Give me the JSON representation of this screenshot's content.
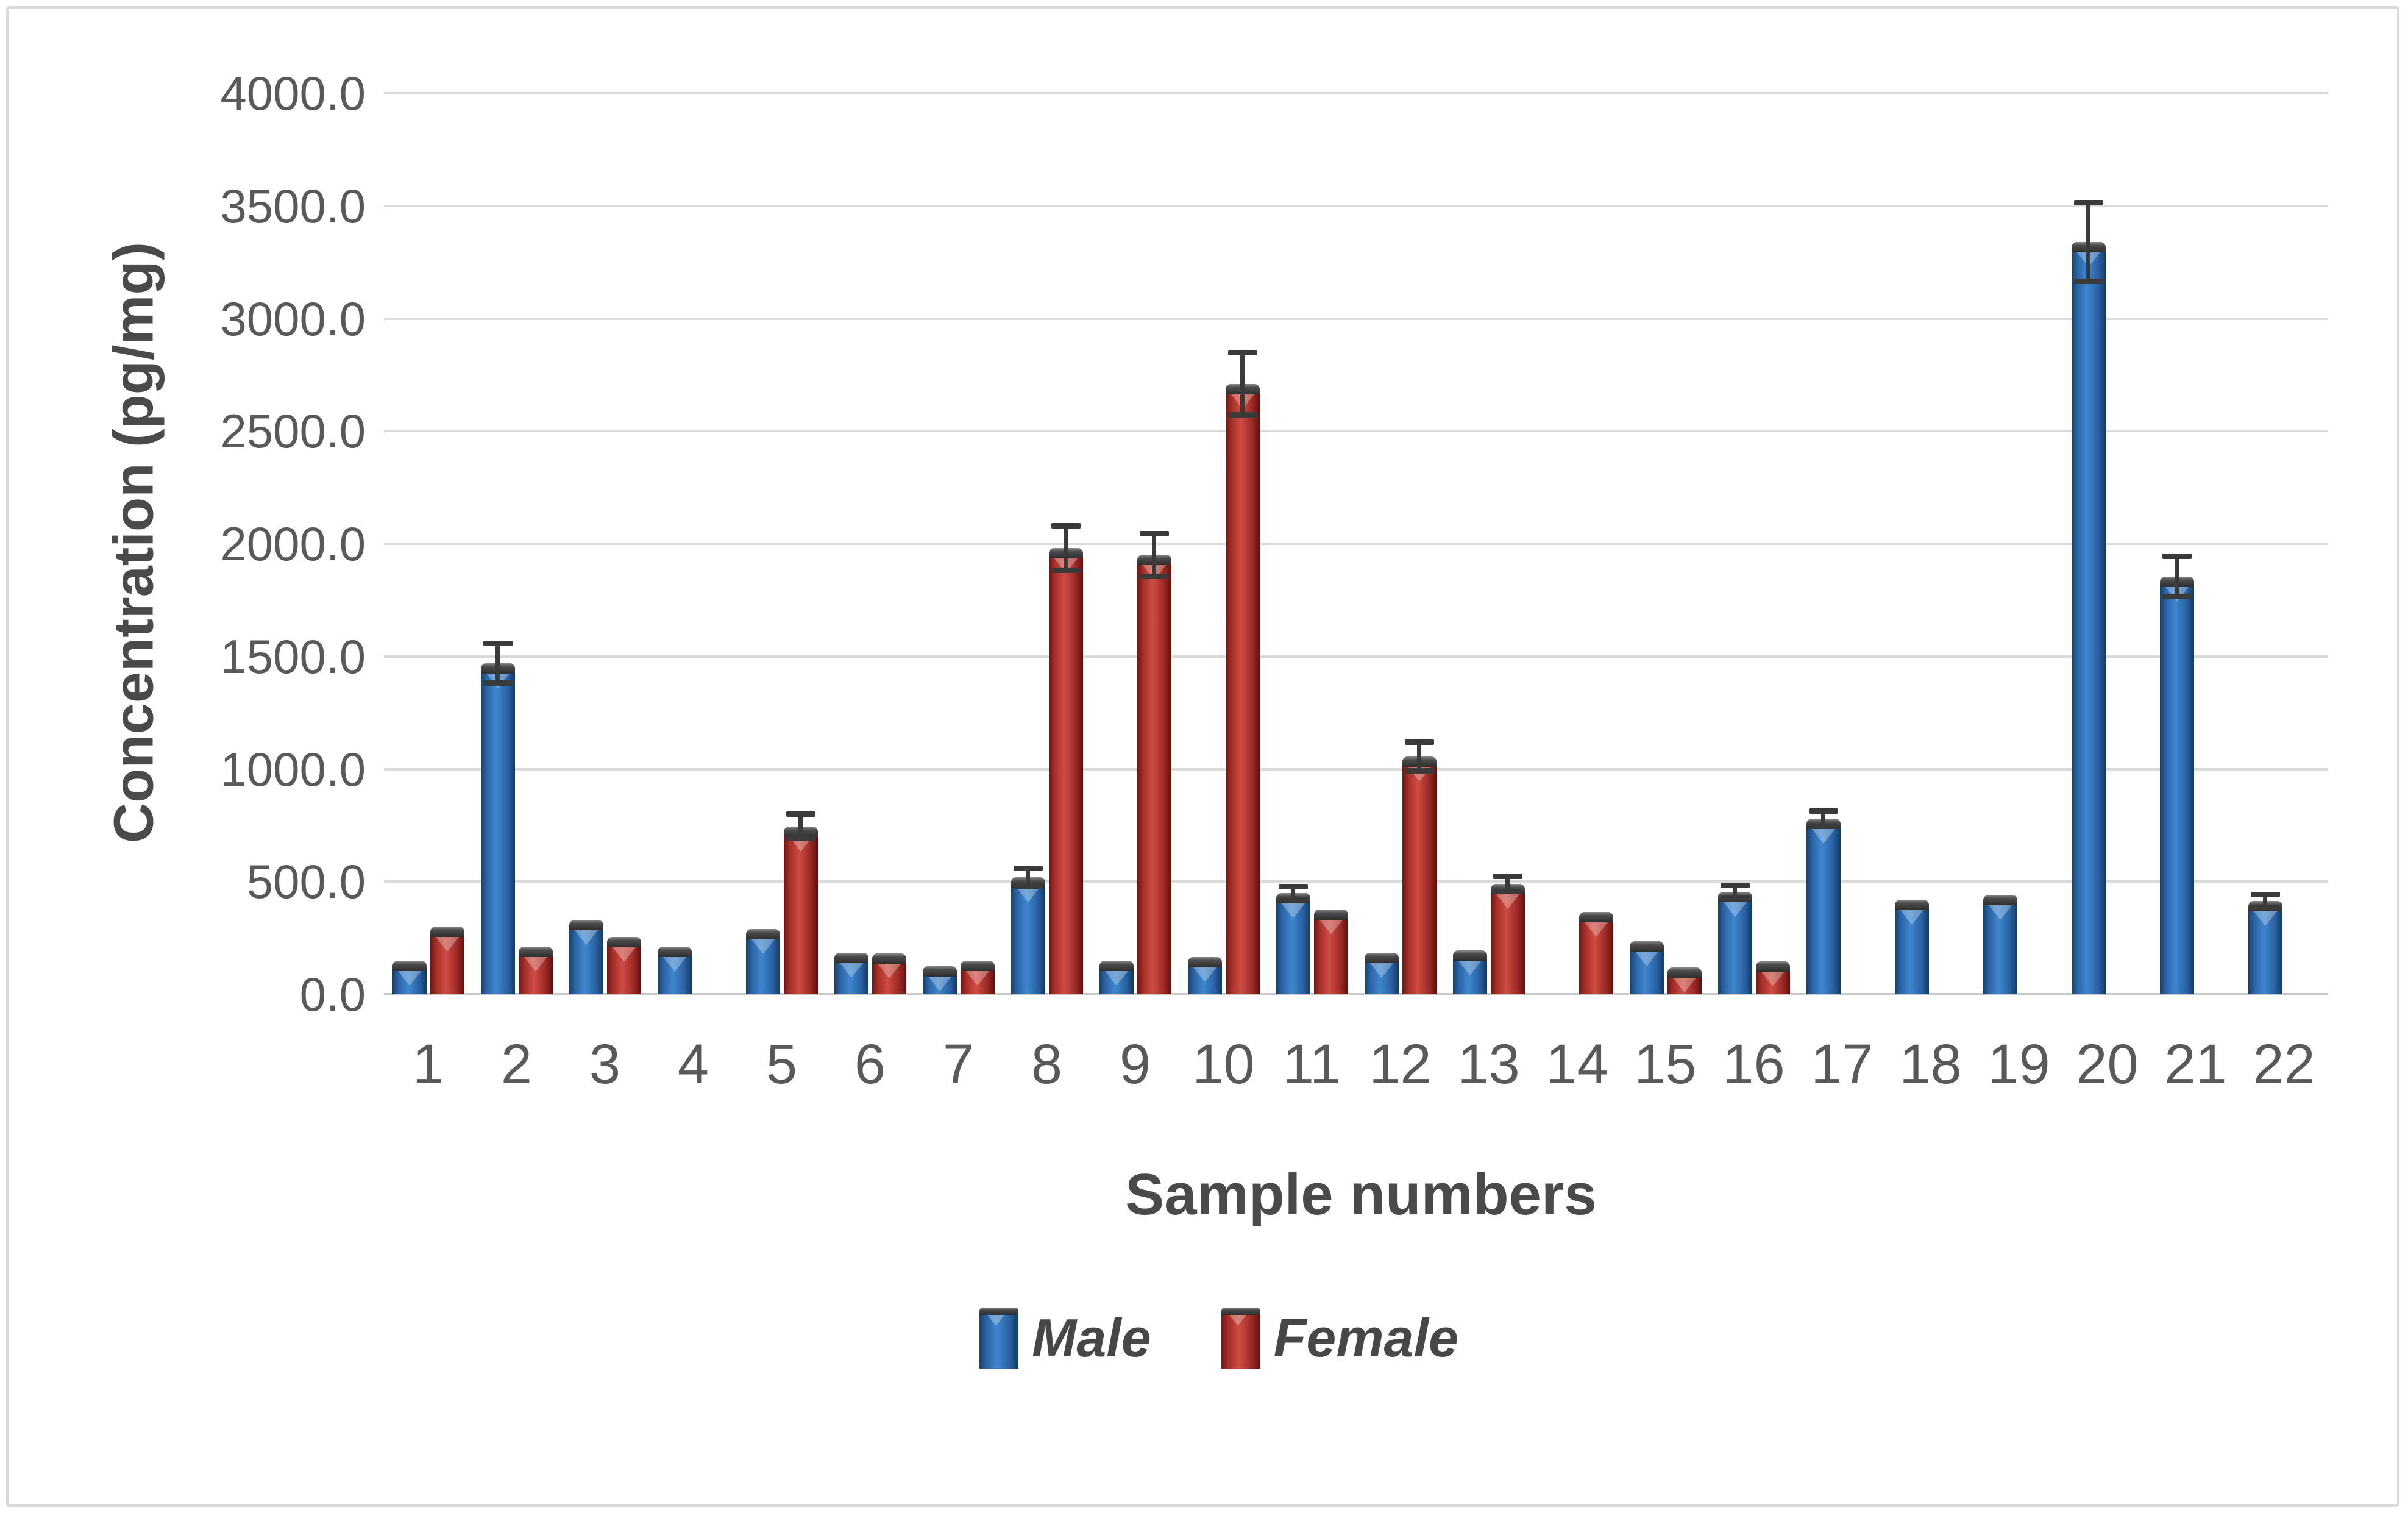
{
  "figure": {
    "background": "#ffffff",
    "border_color": "#d9d9d9"
  },
  "chart_data": {
    "type": "bar",
    "title": "",
    "xlabel": "Sample numbers",
    "ylabel": "Concentration (pg/mg)",
    "categories": [
      "1",
      "2",
      "3",
      "4",
      "5",
      "6",
      "7",
      "8",
      "9",
      "10",
      "11",
      "12",
      "13",
      "14",
      "15",
      "16",
      "17",
      "18",
      "19",
      "20",
      "21",
      "22"
    ],
    "y_ticks": [
      "0.0",
      "500.0",
      "1000.0",
      "1500.0",
      "2000.0",
      "2500.0",
      "3000.0",
      "3500.0",
      "4000.0"
    ],
    "ylim": [
      0,
      4000
    ],
    "grid": true,
    "legend_position": "bottom",
    "error_bar_color": "#3a3a3a",
    "series": [
      {
        "name": "Male",
        "color": "#2e6db4",
        "values": [
          150,
          1470,
          330,
          210,
          290,
          185,
          125,
          520,
          150,
          165,
          450,
          185,
          195,
          null,
          235,
          455,
          780,
          420,
          440,
          3340,
          1855,
          415
        ],
        "errors": [
          0,
          90,
          0,
          0,
          0,
          0,
          0,
          40,
          0,
          0,
          30,
          0,
          0,
          0,
          0,
          30,
          35,
          0,
          0,
          175,
          90,
          30
        ]
      },
      {
        "name": "Female",
        "color": "#b93a35",
        "values": [
          300,
          210,
          255,
          null,
          745,
          180,
          150,
          1980,
          1950,
          2710,
          375,
          1055,
          490,
          365,
          120,
          145,
          null,
          null,
          null,
          null,
          null,
          null
        ],
        "errors": [
          0,
          0,
          0,
          0,
          55,
          0,
          0,
          100,
          95,
          140,
          0,
          65,
          35,
          0,
          0,
          0,
          0,
          0,
          0,
          0,
          0,
          0
        ]
      }
    ]
  }
}
